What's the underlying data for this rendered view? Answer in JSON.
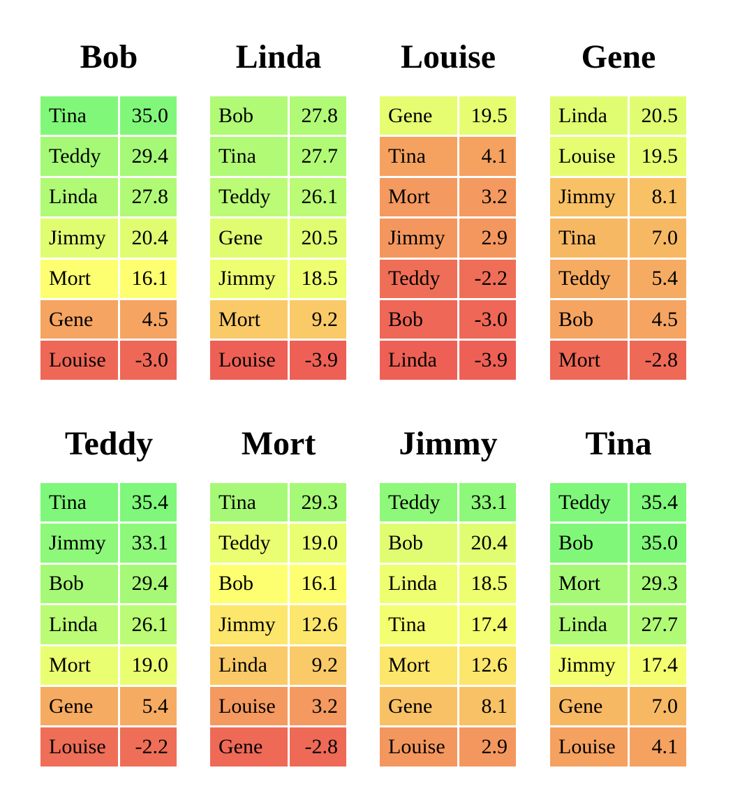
{
  "chart_data": {
    "type": "table",
    "color_scale": {
      "low": "#ee6055",
      "mid": "#ffff70",
      "high": "#7ef77a",
      "min": -3.9,
      "max": 35.4
    },
    "panels": [
      {
        "title": "Bob",
        "rows": [
          {
            "name": "Tina",
            "value": "35.0"
          },
          {
            "name": "Teddy",
            "value": "29.4"
          },
          {
            "name": "Linda",
            "value": "27.8"
          },
          {
            "name": "Jimmy",
            "value": "20.4"
          },
          {
            "name": "Mort",
            "value": "16.1"
          },
          {
            "name": "Gene",
            "value": "4.5"
          },
          {
            "name": "Louise",
            "value": "-3.0"
          }
        ]
      },
      {
        "title": "Linda",
        "rows": [
          {
            "name": "Bob",
            "value": "27.8"
          },
          {
            "name": "Tina",
            "value": "27.7"
          },
          {
            "name": "Teddy",
            "value": "26.1"
          },
          {
            "name": "Gene",
            "value": "20.5"
          },
          {
            "name": "Jimmy",
            "value": "18.5"
          },
          {
            "name": "Mort",
            "value": "9.2"
          },
          {
            "name": "Louise",
            "value": "-3.9"
          }
        ]
      },
      {
        "title": "Louise",
        "rows": [
          {
            "name": "Gene",
            "value": "19.5"
          },
          {
            "name": "Tina",
            "value": "4.1"
          },
          {
            "name": "Mort",
            "value": "3.2"
          },
          {
            "name": "Jimmy",
            "value": "2.9"
          },
          {
            "name": "Teddy",
            "value": "-2.2"
          },
          {
            "name": "Bob",
            "value": "-3.0"
          },
          {
            "name": "Linda",
            "value": "-3.9"
          }
        ]
      },
      {
        "title": "Gene",
        "rows": [
          {
            "name": "Linda",
            "value": "20.5"
          },
          {
            "name": "Louise",
            "value": "19.5"
          },
          {
            "name": "Jimmy",
            "value": "8.1"
          },
          {
            "name": "Tina",
            "value": "7.0"
          },
          {
            "name": "Teddy",
            "value": "5.4"
          },
          {
            "name": "Bob",
            "value": "4.5"
          },
          {
            "name": "Mort",
            "value": "-2.8"
          }
        ]
      },
      {
        "title": "Teddy",
        "rows": [
          {
            "name": "Tina",
            "value": "35.4"
          },
          {
            "name": "Jimmy",
            "value": "33.1"
          },
          {
            "name": "Bob",
            "value": "29.4"
          },
          {
            "name": "Linda",
            "value": "26.1"
          },
          {
            "name": "Mort",
            "value": "19.0"
          },
          {
            "name": "Gene",
            "value": "5.4"
          },
          {
            "name": "Louise",
            "value": "-2.2"
          }
        ]
      },
      {
        "title": "Mort",
        "rows": [
          {
            "name": "Tina",
            "value": "29.3"
          },
          {
            "name": "Teddy",
            "value": "19.0"
          },
          {
            "name": "Bob",
            "value": "16.1"
          },
          {
            "name": "Jimmy",
            "value": "12.6"
          },
          {
            "name": "Linda",
            "value": "9.2"
          },
          {
            "name": "Louise",
            "value": "3.2"
          },
          {
            "name": "Gene",
            "value": "-2.8"
          }
        ]
      },
      {
        "title": "Jimmy",
        "rows": [
          {
            "name": "Teddy",
            "value": "33.1"
          },
          {
            "name": "Bob",
            "value": "20.4"
          },
          {
            "name": "Linda",
            "value": "18.5"
          },
          {
            "name": "Tina",
            "value": "17.4"
          },
          {
            "name": "Mort",
            "value": "12.6"
          },
          {
            "name": "Gene",
            "value": "8.1"
          },
          {
            "name": "Louise",
            "value": "2.9"
          }
        ]
      },
      {
        "title": "Tina",
        "rows": [
          {
            "name": "Teddy",
            "value": "35.4"
          },
          {
            "name": "Bob",
            "value": "35.0"
          },
          {
            "name": "Mort",
            "value": "29.3"
          },
          {
            "name": "Linda",
            "value": "27.7"
          },
          {
            "name": "Jimmy",
            "value": "17.4"
          },
          {
            "name": "Gene",
            "value": "7.0"
          },
          {
            "name": "Louise",
            "value": "4.1"
          }
        ]
      }
    ]
  }
}
